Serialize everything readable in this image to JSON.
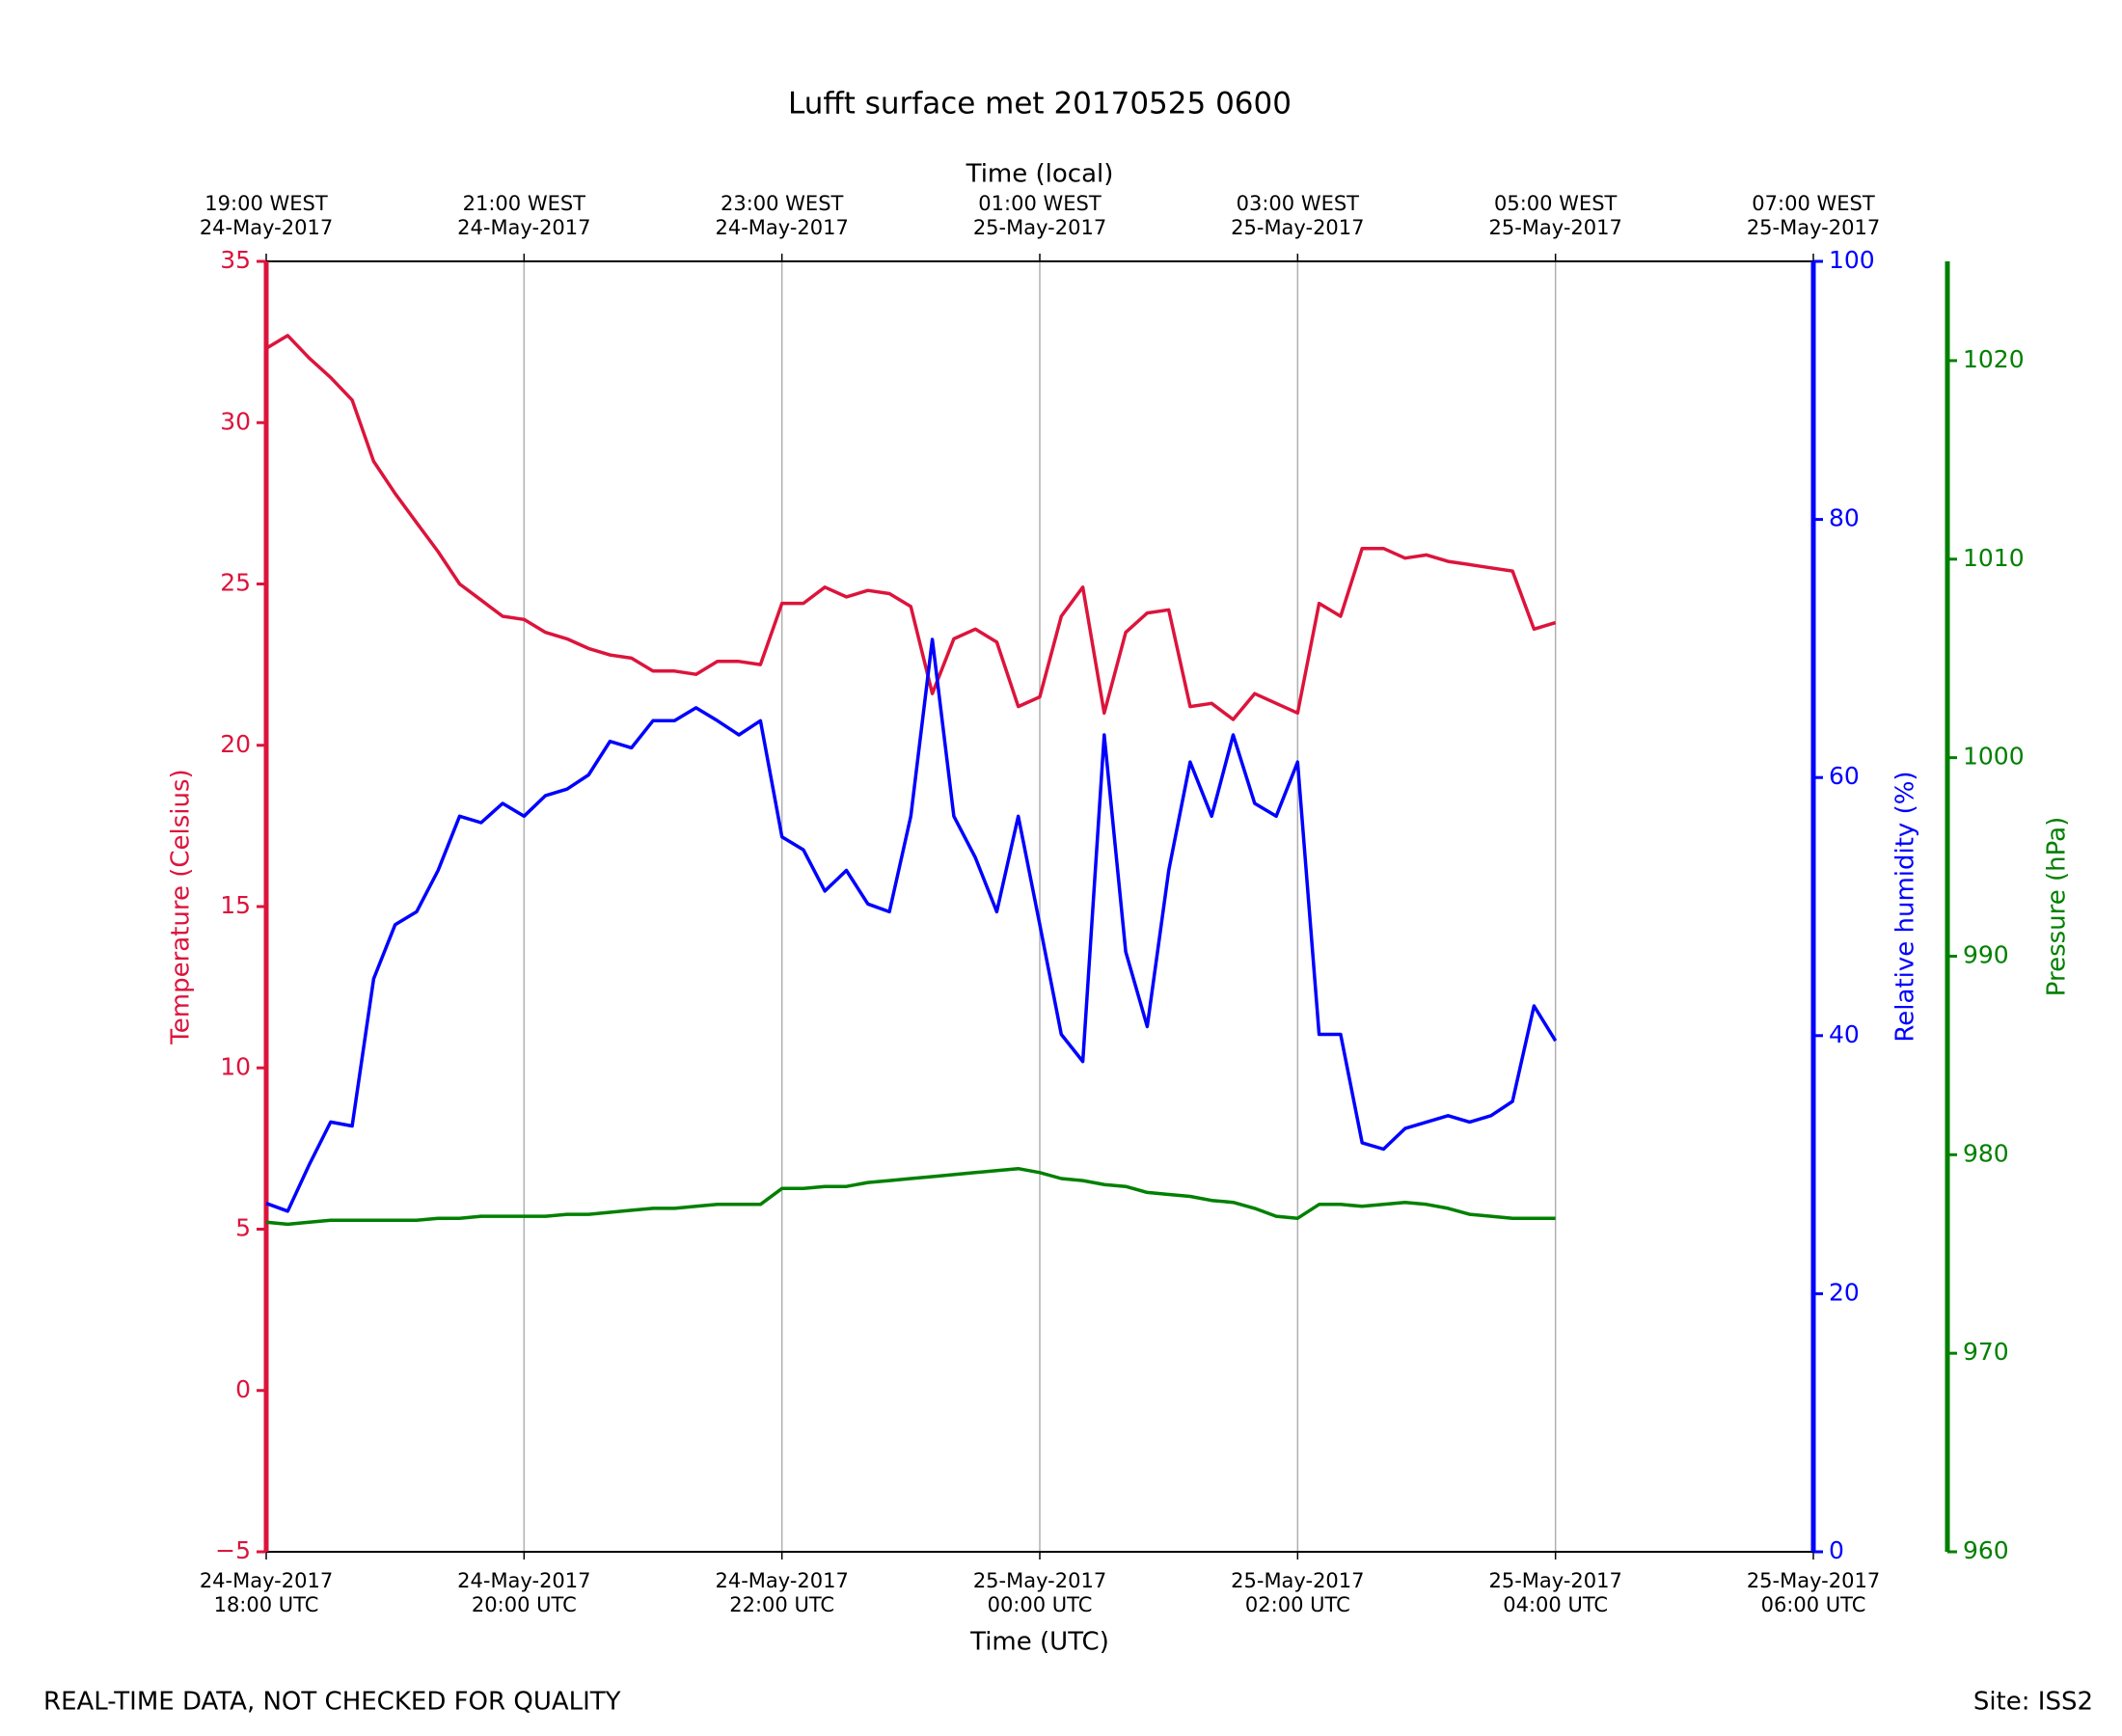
{
  "chart_data": {
    "type": "line",
    "title": "Lufft surface met 20170525 0600",
    "xlabel": "Time (UTC)",
    "x2label": "Time (local)",
    "ylabel": "Temperature (Celsius)",
    "y2label": "Relative humidity (%)",
    "y3label": "Pressure (hPa)",
    "note_left": "REAL-TIME DATA, NOT CHECKED FOR QUALITY",
    "note_right": "Site: ISS2",
    "grid": true,
    "xlim": [
      "2017-05-24T18:00",
      "2017-05-25T06:00"
    ],
    "xticks": [
      {
        "value": "2017-05-24T18:00",
        "label": "24-May-2017\n18:00 UTC"
      },
      {
        "value": "2017-05-24T20:00",
        "label": "24-May-2017\n20:00 UTC"
      },
      {
        "value": "2017-05-24T22:00",
        "label": "24-May-2017\n22:00 UTC"
      },
      {
        "value": "2017-05-25T00:00",
        "label": "25-May-2017\n00:00 UTC"
      },
      {
        "value": "2017-05-25T02:00",
        "label": "25-May-2017\n02:00 UTC"
      },
      {
        "value": "2017-05-25T04:00",
        "label": "25-May-2017\n04:00 UTC"
      },
      {
        "value": "2017-05-25T06:00",
        "label": "25-May-2017\n06:00 UTC"
      }
    ],
    "x2ticks": [
      {
        "value": "2017-05-24T18:00",
        "label": "19:00 WEST\n24-May-2017"
      },
      {
        "value": "2017-05-24T20:00",
        "label": "21:00 WEST\n24-May-2017"
      },
      {
        "value": "2017-05-24T22:00",
        "label": "23:00 WEST\n24-May-2017"
      },
      {
        "value": "2017-05-25T00:00",
        "label": "01:00 WEST\n25-May-2017"
      },
      {
        "value": "2017-05-25T02:00",
        "label": "03:00 WEST\n25-May-2017"
      },
      {
        "value": "2017-05-25T04:00",
        "label": "05:00 WEST\n25-May-2017"
      },
      {
        "value": "2017-05-25T06:00",
        "label": "07:00 WEST\n25-May-2017"
      }
    ],
    "ylim": [
      -5,
      35
    ],
    "yticks": [
      {
        "value": -5,
        "label": "−5"
      },
      0,
      5,
      10,
      15,
      20,
      25,
      30,
      35
    ],
    "y2lim": [
      0,
      100
    ],
    "y2ticks": [
      0,
      20,
      40,
      60,
      80,
      100
    ],
    "y3lim": [
      960,
      1025
    ],
    "y3ticks": [
      960,
      970,
      980,
      990,
      1000,
      1010,
      1020
    ],
    "x": [
      "2017-05-24T18:00",
      "2017-05-24T18:10",
      "2017-05-24T18:20",
      "2017-05-24T18:30",
      "2017-05-24T18:40",
      "2017-05-24T18:50",
      "2017-05-24T19:00",
      "2017-05-24T19:10",
      "2017-05-24T19:20",
      "2017-05-24T19:30",
      "2017-05-24T19:40",
      "2017-05-24T19:50",
      "2017-05-24T20:00",
      "2017-05-24T20:10",
      "2017-05-24T20:20",
      "2017-05-24T20:30",
      "2017-05-24T20:40",
      "2017-05-24T20:50",
      "2017-05-24T21:00",
      "2017-05-24T21:10",
      "2017-05-24T21:20",
      "2017-05-24T21:30",
      "2017-05-24T21:40",
      "2017-05-24T21:50",
      "2017-05-24T22:00",
      "2017-05-24T22:10",
      "2017-05-24T22:20",
      "2017-05-24T22:30",
      "2017-05-24T22:40",
      "2017-05-24T22:50",
      "2017-05-24T23:00",
      "2017-05-24T23:10",
      "2017-05-24T23:20",
      "2017-05-24T23:30",
      "2017-05-24T23:40",
      "2017-05-24T23:50",
      "2017-05-25T00:00",
      "2017-05-25T00:10",
      "2017-05-25T00:20",
      "2017-05-25T00:30",
      "2017-05-25T00:40",
      "2017-05-25T00:50",
      "2017-05-25T01:00",
      "2017-05-25T01:10",
      "2017-05-25T01:20",
      "2017-05-25T01:30",
      "2017-05-25T01:40",
      "2017-05-25T01:50",
      "2017-05-25T02:00",
      "2017-05-25T02:10",
      "2017-05-25T02:20",
      "2017-05-25T02:30",
      "2017-05-25T02:40",
      "2017-05-25T02:50",
      "2017-05-25T03:00",
      "2017-05-25T03:10",
      "2017-05-25T03:20",
      "2017-05-25T03:30",
      "2017-05-25T03:40",
      "2017-05-25T03:50",
      "2017-05-25T04:00"
    ],
    "series": [
      {
        "color": "#dc143c",
        "axis": "y",
        "values": [
          32.3,
          32.7,
          32.0,
          31.4,
          30.7,
          28.8,
          27.8,
          26.9,
          26.0,
          25.0,
          24.5,
          24.0,
          23.9,
          23.5,
          23.3,
          23.0,
          22.8,
          22.7,
          22.3,
          22.3,
          22.2,
          22.6,
          22.6,
          22.5,
          24.4,
          24.4,
          24.9,
          24.6,
          24.8,
          24.7,
          24.3,
          21.6,
          23.3,
          23.6,
          23.2,
          21.2,
          21.5,
          24.0,
          24.9,
          21.0,
          23.5,
          24.1,
          24.2,
          21.2,
          21.3,
          20.8,
          21.6,
          21.3,
          21.0,
          24.4,
          24.0,
          26.1,
          26.1,
          25.8,
          25.9,
          25.7,
          25.6,
          25.5,
          25.4,
          23.6,
          23.8
        ]
      },
      {
        "color": "#0000ff",
        "axis": "y2",
        "values": [
          27,
          26.4,
          30,
          33.3,
          33,
          44.4,
          48.6,
          49.6,
          52.8,
          57,
          56.5,
          58,
          57,
          58.6,
          59.1,
          60.2,
          62.8,
          62.3,
          64.4,
          64.4,
          65.4,
          64.4,
          63.3,
          64.4,
          55.4,
          54.4,
          51.2,
          52.8,
          50.2,
          49.6,
          57,
          70.7,
          57,
          53.8,
          49.6,
          57,
          48.6,
          40.1,
          38,
          63.3,
          46.5,
          40.7,
          52.8,
          61.2,
          57,
          63.3,
          58,
          57,
          61.2,
          40.1,
          40.1,
          31.7,
          31.2,
          32.8,
          33.3,
          33.8,
          33.3,
          33.8,
          34.9,
          42.3,
          39.6
        ]
      },
      {
        "color": "#008000",
        "axis": "y3",
        "values": [
          976.6,
          976.5,
          976.6,
          976.7,
          976.7,
          976.7,
          976.7,
          976.7,
          976.8,
          976.8,
          976.9,
          976.9,
          976.9,
          976.9,
          977.0,
          977.0,
          977.1,
          977.2,
          977.3,
          977.3,
          977.4,
          977.5,
          977.5,
          977.5,
          978.3,
          978.3,
          978.4,
          978.4,
          978.6,
          978.7,
          978.8,
          978.9,
          979.0,
          979.1,
          979.2,
          979.3,
          979.1,
          978.8,
          978.7,
          978.5,
          978.4,
          978.1,
          978.0,
          977.9,
          977.7,
          977.6,
          977.3,
          976.9,
          976.8,
          977.5,
          977.5,
          977.4,
          977.5,
          977.6,
          977.5,
          977.3,
          977.0,
          976.9,
          976.8,
          976.8,
          976.8
        ]
      }
    ]
  }
}
